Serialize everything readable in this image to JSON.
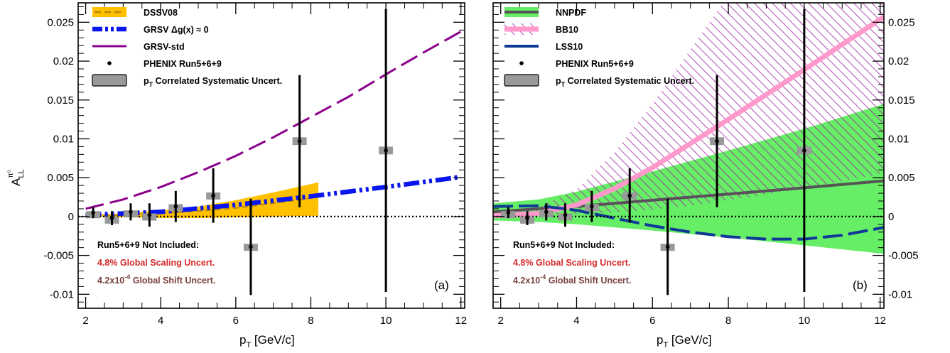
{
  "colors": {
    "dssv": "#ffc000",
    "dssv_line": "#b8860b",
    "grsv_dg0": "#0a16f0",
    "grsv_std": "#8b008b",
    "nnpdf_band": "#66ee66",
    "nnpdf_line": "#555555",
    "bb10_line": "#ff99cc",
    "bb10_hatch": "#a020a0",
    "lss10": "#103a96",
    "syst": "#999999",
    "note_red": "#d42a2a",
    "note_brown": "#7a4040"
  },
  "shared": {
    "ylabel": "A",
    "ylabel_sub": "LL",
    "ylabel_sup": "π⁰",
    "xlabel": "p",
    "xlabel_sub": "T",
    "xlabel_units": "[GeV/c]",
    "notes": {
      "header": "Run5+6+9 Not Included:",
      "scaling": "4.8% Global Scaling Uncert.",
      "shift_pre": "4.2x10",
      "shift_exp": "-4",
      "shift_post": " Global Shift Uncert."
    },
    "phenix_data": {
      "pt": [
        2.2,
        2.7,
        3.2,
        3.7,
        4.4,
        5.4,
        6.4,
        7.7,
        10.0
      ],
      "a_ll": [
        0.0005,
        -0.0002,
        0.0006,
        0.0002,
        0.0013,
        0.0027,
        -0.0039,
        0.0097,
        0.0085
      ],
      "err": [
        0.0007,
        0.0009,
        0.0011,
        0.0015,
        0.002,
        0.0035,
        0.0062,
        0.0085,
        0.0182
      ],
      "syst": [
        0.0002,
        0.0002,
        0.0002,
        0.0002,
        0.0003,
        0.0004,
        0.0004,
        0.0005,
        0.0005
      ]
    }
  },
  "chart_data": [
    {
      "type": "line",
      "panel_label": "(a)",
      "xlim": [
        1.8,
        12.1
      ],
      "ylim": [
        -0.0118,
        0.0275
      ],
      "x_ticks": [
        2,
        4,
        6,
        8,
        10,
        12
      ],
      "x_tick_labels": [
        "2",
        "4",
        "6",
        "8",
        "10",
        "12"
      ],
      "y_ticks": [
        -0.01,
        -0.005,
        0,
        0.005,
        0.01,
        0.015,
        0.02,
        0.025
      ],
      "y_tick_labels": [
        "-0.01",
        "-0.005",
        "0",
        "0.005",
        "0.01",
        "0.015",
        "0.02",
        "0.025"
      ],
      "y_axis_side": "left",
      "legend": [
        {
          "kind": "band",
          "name": "DSSV08"
        },
        {
          "kind": "dashdot",
          "name_pre": "GRSV ",
          "name_mid": "Δg(x)",
          "name_post": " ≈ 0"
        },
        {
          "kind": "longdash",
          "name": "GRSV-std"
        },
        {
          "kind": "point",
          "name": "PHENIX Run5+6+9"
        },
        {
          "kind": "box",
          "name": "Correlated Systematic Uncert.",
          "prefix": "p",
          "prefix_sub": "T"
        }
      ],
      "series": [
        {
          "name": "DSSV08",
          "kind": "band",
          "x": [
            2.0,
            3.0,
            4.0,
            5.0,
            6.0,
            7.0,
            8.2
          ],
          "lower": [
            0.0,
            -0.0001,
            -0.0002,
            -0.0002,
            -0.0001,
            0.0,
            0.0001
          ],
          "upper": [
            0.0002,
            0.0004,
            0.0008,
            0.0013,
            0.0021,
            0.0031,
            0.0044
          ],
          "center": [
            0.0001,
            0.0002,
            0.0004,
            0.0007,
            0.0011,
            0.0017,
            0.0025
          ]
        },
        {
          "name": "GRSV Δg(x) ≈ 0",
          "kind": "dashdot",
          "x": [
            2.0,
            4.0,
            6.0,
            8.0,
            10.0,
            12.0
          ],
          "y": [
            0.0002,
            0.0006,
            0.0015,
            0.0026,
            0.0038,
            0.0051
          ]
        },
        {
          "name": "GRSV-std",
          "kind": "longdash",
          "x": [
            2.0,
            3.0,
            4.0,
            5.0,
            6.0,
            7.0,
            8.0,
            9.0,
            10.0,
            11.0,
            12.0
          ],
          "y": [
            0.001,
            0.0022,
            0.0038,
            0.0057,
            0.0078,
            0.0102,
            0.0128,
            0.0154,
            0.0183,
            0.0211,
            0.0238
          ]
        }
      ]
    },
    {
      "type": "line",
      "panel_label": "(b)",
      "xlim": [
        1.8,
        12.1
      ],
      "ylim": [
        -0.0118,
        0.0275
      ],
      "x_ticks": [
        2,
        4,
        6,
        8,
        10,
        12
      ],
      "x_tick_labels": [
        "2",
        "4",
        "6",
        "8",
        "10",
        "12"
      ],
      "y_ticks": [
        -0.01,
        -0.005,
        0,
        0.005,
        0.01,
        0.015,
        0.02,
        0.025
      ],
      "y_tick_labels": [
        "-0.01",
        "-0.005",
        "0",
        "0.005",
        "0.01",
        "0.015",
        "0.02",
        "0.025"
      ],
      "y_axis_side": "right",
      "legend": [
        {
          "kind": "nnpdf",
          "name": "NNPDF"
        },
        {
          "kind": "bb10",
          "name": "BB10"
        },
        {
          "kind": "lss10",
          "name": "LSS10"
        },
        {
          "kind": "point",
          "name": "PHENIX Run5+6+9"
        },
        {
          "kind": "box",
          "name": "Correlated Systematic Uncert.",
          "prefix": "p",
          "prefix_sub": "T"
        }
      ],
      "series": [
        {
          "name": "NNPDF",
          "kind": "band_line",
          "x": [
            1.8,
            3.0,
            4.0,
            6.0,
            8.0,
            10.0,
            12.1
          ],
          "lower": [
            -0.0005,
            -0.0007,
            -0.001,
            -0.0018,
            -0.0027,
            -0.0037,
            -0.0048
          ],
          "upper": [
            0.0017,
            0.0022,
            0.0032,
            0.0058,
            0.0085,
            0.0113,
            0.0145
          ],
          "center": [
            0.0006,
            0.001,
            0.0013,
            0.0021,
            0.0029,
            0.0037,
            0.0046
          ]
        },
        {
          "name": "BB10",
          "kind": "hatch_band",
          "x": [
            1.8,
            3.0,
            4.0,
            5.0,
            6.0,
            7.0,
            8.0,
            10.0,
            12.1
          ],
          "lower": [
            0.0,
            0.0003,
            0.0003,
            0.0005,
            0.0009,
            0.0014,
            0.0021,
            0.0036,
            0.0056
          ],
          "upper": [
            0.0002,
            0.0012,
            0.0035,
            0.0083,
            0.0145,
            0.0215,
            0.0285,
            0.0385,
            0.0465
          ],
          "center": [
            0.0001,
            0.0004,
            0.0015,
            0.0036,
            0.0063,
            0.0094,
            0.0125,
            0.0189,
            0.0257
          ]
        },
        {
          "name": "LSS10",
          "kind": "longdash_thick",
          "x": [
            1.8,
            3.0,
            4.0,
            5.0,
            6.0,
            7.0,
            8.0,
            9.0,
            10.0,
            11.0,
            12.1
          ],
          "y": [
            0.0013,
            0.0014,
            0.0008,
            -0.0002,
            -0.0012,
            -0.002,
            -0.0026,
            -0.0029,
            -0.0029,
            -0.0024,
            -0.0014
          ]
        }
      ]
    }
  ]
}
